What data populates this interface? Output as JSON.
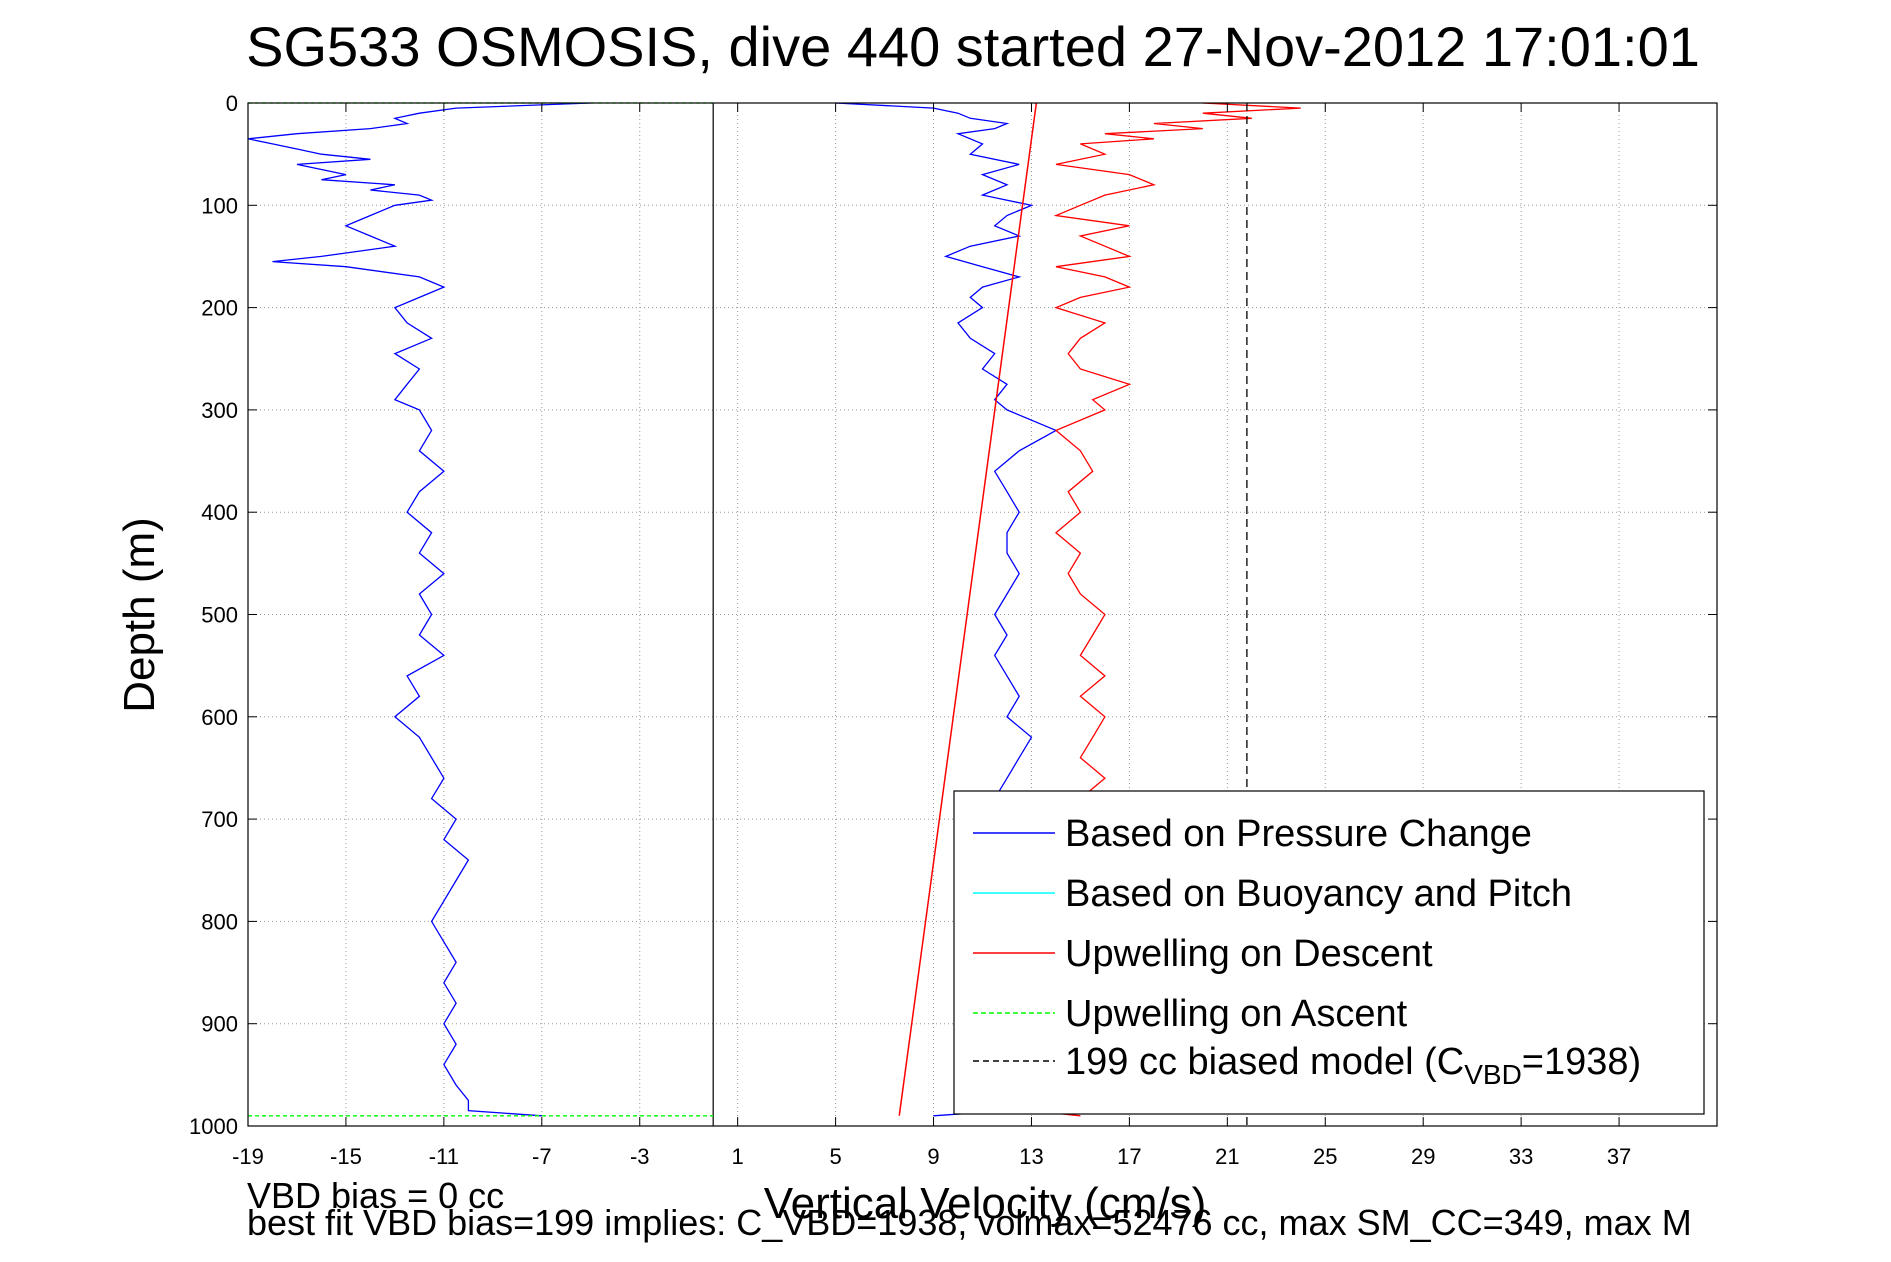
{
  "chart_data": {
    "type": "line",
    "title": "SG533 OSMOSIS, dive 440 started 27-Nov-2012 17:01:01",
    "xlabel": "Vertical Velocity (cm/s)",
    "ylabel": "Depth (m)",
    "xlim": [
      -19,
      41
    ],
    "ylim": [
      0,
      1000
    ],
    "y_reversed": true,
    "grid": true,
    "xticks": [
      -19,
      -15,
      -11,
      -7,
      -3,
      1,
      5,
      9,
      13,
      17,
      21,
      25,
      29,
      33,
      37
    ],
    "yticks": [
      0,
      100,
      200,
      300,
      400,
      500,
      600,
      700,
      800,
      900,
      1000
    ],
    "legend_position": "bottom-right",
    "vertical_zero_line": 0,
    "series": [
      {
        "name": "Based on Pressure Change",
        "color": "#0000ff",
        "style": "solid",
        "segments": [
          {
            "depth": [
              0,
              5,
              10,
              15,
              20,
              25,
              30,
              35,
              40,
              45,
              50,
              55,
              60,
              65,
              70,
              75,
              80,
              85,
              90,
              95,
              100,
              110,
              120,
              130,
              140,
              150,
              155,
              160,
              170,
              180,
              190,
              200,
              215,
              230,
              245,
              260,
              275,
              290,
              300,
              320,
              340,
              360,
              380,
              400,
              420,
              440,
              460,
              480,
              500,
              520,
              540,
              560,
              580,
              600,
              620,
              640,
              660,
              680,
              700,
              720,
              740,
              760,
              780,
              800,
              820,
              840,
              860,
              880,
              900,
              920,
              940,
              960,
              975,
              985,
              990
            ],
            "v": [
              -5,
              -10.5,
              -12,
              -13,
              -12.5,
              -14,
              -17,
              -19,
              -18,
              -17,
              -16,
              -14,
              -17,
              -16,
              -15,
              -16,
              -13,
              -14,
              -12,
              -11.5,
              -13,
              -14,
              -15,
              -14,
              -13,
              -16,
              -18,
              -15,
              -12,
              -11,
              -12,
              -13,
              -12.5,
              -11.5,
              -13,
              -12,
              -12.5,
              -13,
              -12,
              -11.5,
              -12,
              -11,
              -12,
              -12.5,
              -11.5,
              -12,
              -11,
              -12,
              -11.5,
              -12,
              -11,
              -12.5,
              -12,
              -13,
              -12,
              -11.5,
              -11,
              -11.5,
              -10.5,
              -11,
              -10,
              -10.5,
              -11,
              -11.5,
              -11,
              -10.5,
              -11,
              -10.5,
              -11,
              -10.5,
              -11,
              -10.5,
              -10,
              -10,
              -7
            ]
          },
          {
            "depth": [
              0,
              5,
              10,
              15,
              20,
              25,
              30,
              40,
              50,
              60,
              70,
              80,
              90,
              100,
              110,
              120,
              130,
              140,
              150,
              160,
              170,
              180,
              190,
              200,
              215,
              230,
              245,
              260,
              275,
              290,
              300,
              320,
              340,
              360,
              380,
              400,
              420,
              440,
              460,
              480,
              500,
              520,
              540,
              560,
              580,
              600,
              620,
              640,
              660,
              680,
              700,
              720,
              740,
              760,
              780,
              800,
              820,
              840,
              860,
              880,
              900,
              920,
              940,
              960,
              975,
              985,
              990
            ],
            "v": [
              5,
              9,
              10,
              10.5,
              12,
              11.5,
              10,
              11,
              10.5,
              12.5,
              11,
              12,
              11,
              13,
              12,
              11.5,
              12.5,
              10.5,
              9.5,
              11,
              12.5,
              11,
              10.5,
              11,
              10,
              10.5,
              11.5,
              11,
              12,
              11.5,
              12,
              14,
              12.5,
              11.5,
              12,
              12.5,
              12,
              12,
              12.5,
              12,
              11.5,
              12,
              11.5,
              12,
              12.5,
              12,
              13,
              12.5,
              12,
              11.5,
              12,
              12.5,
              12,
              12,
              12,
              12,
              12,
              12,
              12,
              12,
              12,
              12,
              12,
              12,
              12,
              12,
              9
            ]
          }
        ]
      },
      {
        "name": "Based on Buoyancy and Pitch",
        "color": "#00ffff",
        "style": "solid",
        "depth": [],
        "v": []
      },
      {
        "name": "Upwelling on Descent",
        "color": "#ff0000",
        "style": "solid",
        "segments": [
          {
            "depth": [
              0,
              5,
              10,
              15,
              20,
              25,
              30,
              35,
              40,
              50,
              60,
              70,
              80,
              90,
              100,
              110,
              120,
              130,
              140,
              150,
              160,
              170,
              180,
              190,
              200,
              215,
              230,
              245,
              260,
              275,
              290,
              300,
              320,
              340,
              360,
              380,
              400,
              420,
              440,
              460,
              480,
              500,
              520,
              540,
              560,
              580,
              600,
              620,
              640,
              660,
              680
            ],
            "v": [
              20,
              24,
              20,
              22,
              18,
              20,
              16,
              18,
              15,
              16,
              14,
              17,
              18,
              16,
              15,
              14,
              17,
              15,
              16,
              17,
              14,
              16,
              17,
              15,
              14,
              16,
              15,
              14.5,
              15,
              17,
              15.5,
              16,
              14,
              15,
              15.5,
              14.5,
              15,
              14,
              15,
              14.5,
              15,
              16,
              15.5,
              15,
              16,
              15,
              16,
              15.5,
              15,
              16,
              15
            ]
          },
          {
            "depth": [
              985,
              990
            ],
            "v": [
              13,
              15
            ]
          }
        ]
      },
      {
        "name": "Upwelling on Ascent",
        "color": "#00ff00",
        "style": "dashed",
        "segments": [
          {
            "depth": [
              0,
              0
            ],
            "v": [
              -19,
              0
            ]
          },
          {
            "depth": [
              990,
              990
            ],
            "v": [
              -19,
              0
            ]
          }
        ]
      },
      {
        "name": "199 cc biased model (C_VBD=1938)",
        "color": "#000000",
        "style": "dashed",
        "depth": [
          0,
          1000
        ],
        "v": [
          21.8,
          21.8
        ]
      }
    ],
    "fit_line": {
      "color": "#ff0000",
      "depth": [
        0,
        990
      ],
      "v": [
        13.2,
        7.6
      ]
    },
    "legend": [
      {
        "label": "Based on Pressure Change",
        "color": "#0000ff",
        "style": "solid"
      },
      {
        "label": "Based on Buoyancy and Pitch",
        "color": "#00ffff",
        "style": "solid"
      },
      {
        "label": "Upwelling on Descent",
        "color": "#ff0000",
        "style": "solid"
      },
      {
        "label": "Upwelling on Ascent",
        "color": "#00ff00",
        "style": "dashed"
      },
      {
        "label": "199 cc biased model (C",
        "sub": "VBD",
        "tail": "=1938)",
        "color": "#000000",
        "style": "dashed"
      }
    ]
  },
  "notes": {
    "line1": "VBD bias = 0 cc",
    "line2": "best fit VBD bias=199 implies: C_VBD=1938, volmax=52476 cc, max SM_CC=349, max M"
  }
}
